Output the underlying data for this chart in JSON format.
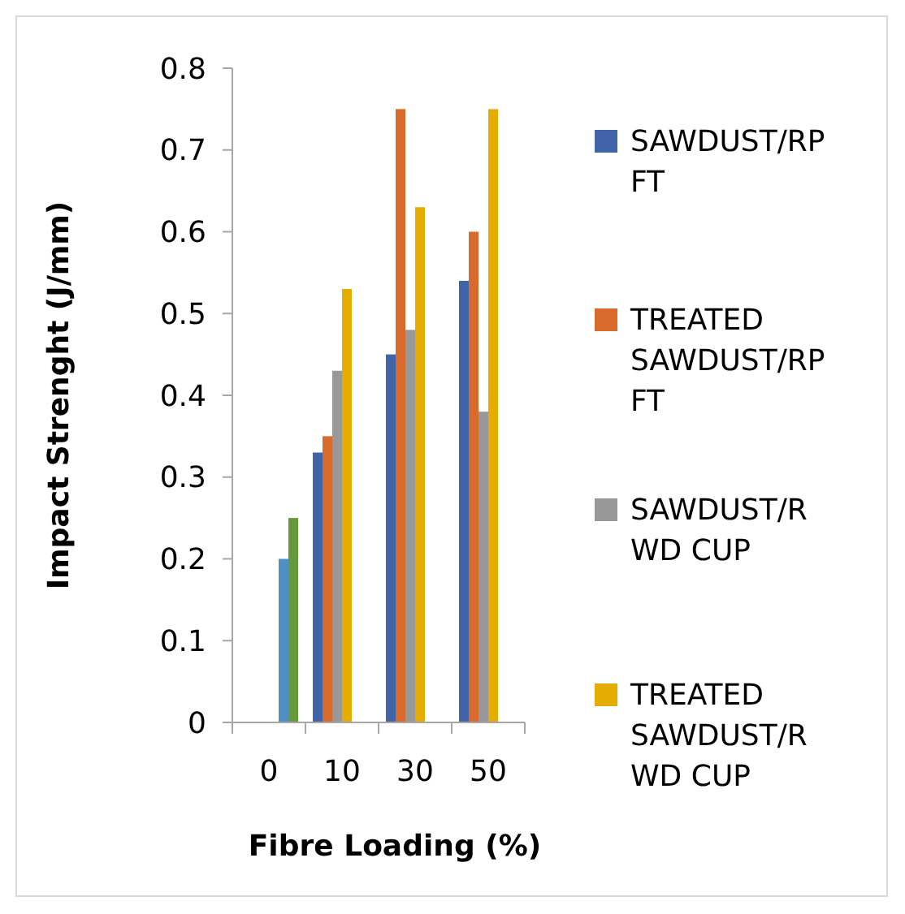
{
  "chart_data": {
    "type": "bar",
    "xlabel": "Fibre Loading (%)",
    "ylabel": "Impact Strenght (J/mm)",
    "categories": [
      "0",
      "10",
      "30",
      "50"
    ],
    "series": [
      {
        "name": "SAWDUST/RP FT",
        "color": "#4163a8",
        "values": [
          null,
          0.33,
          0.45,
          0.54
        ]
      },
      {
        "name": "TREATED SAWDUST/RP FT",
        "color": "#d86b2c",
        "values": [
          null,
          0.35,
          0.75,
          0.6
        ]
      },
      {
        "name": "SAWDUST/R WD CUP",
        "color": "#989898",
        "values": [
          null,
          0.43,
          0.48,
          0.38
        ]
      },
      {
        "name": "TREATED SAWDUST/R WD CUP",
        "color": "#e5ac02",
        "values": [
          null,
          0.53,
          0.63,
          0.75
        ]
      },
      {
        "color": "#4f8fc2",
        "values": [
          0.2,
          null,
          null,
          null
        ]
      },
      {
        "color": "#629a3c",
        "values": [
          0.25,
          null,
          null,
          null
        ]
      }
    ],
    "ylim": [
      0,
      0.8
    ],
    "yticks": [
      0,
      0.1,
      0.2,
      0.3,
      0.4,
      0.5,
      0.6,
      0.7,
      0.8
    ],
    "grid": false,
    "legend": "right"
  }
}
